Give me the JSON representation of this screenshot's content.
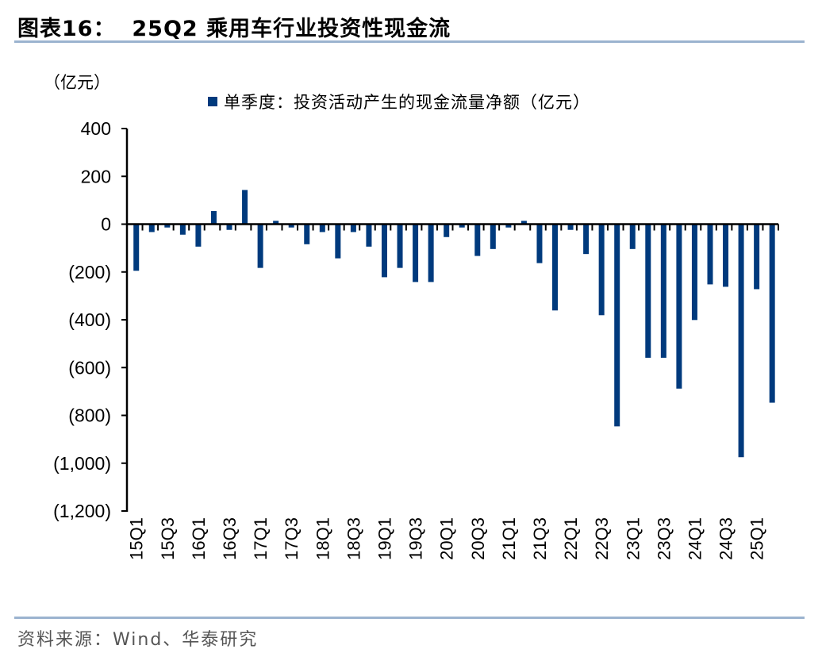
{
  "title": "图表16：  25Q2 乘用车行业投资性现金流",
  "source": "资料来源：Wind、华泰研究",
  "colors": {
    "bar": "#003a7d",
    "rule": "#9bb3cf",
    "axis": "#000000"
  },
  "chart_data": {
    "type": "bar",
    "title": "",
    "ylabel": "（亿元）",
    "xlabel": "",
    "ylim": [
      -1200,
      400
    ],
    "yticks": [
      400,
      200,
      0,
      -200,
      -400,
      -600,
      -800,
      -1000,
      -1200
    ],
    "ytick_labels": [
      "400",
      "200",
      "0",
      "(200)",
      "(400)",
      "(600)",
      "(800)",
      "(1,000)",
      "(1,200)"
    ],
    "grid": false,
    "legend": {
      "placement": "top-center",
      "entries": [
        "单季度：投资活动产生的现金流量净额（亿元）"
      ]
    },
    "categories": [
      "15Q1",
      "15Q2",
      "15Q3",
      "15Q4",
      "16Q1",
      "16Q2",
      "16Q3",
      "16Q4",
      "17Q1",
      "17Q2",
      "17Q3",
      "17Q4",
      "18Q1",
      "18Q2",
      "18Q3",
      "18Q4",
      "19Q1",
      "19Q2",
      "19Q3",
      "19Q4",
      "20Q1",
      "20Q2",
      "20Q3",
      "20Q4",
      "21Q1",
      "21Q2",
      "21Q3",
      "21Q4",
      "22Q1",
      "22Q2",
      "22Q3",
      "22Q4",
      "23Q1",
      "23Q2",
      "23Q3",
      "23Q4",
      "24Q1",
      "24Q2",
      "24Q3",
      "24Q4",
      "25Q1",
      "25Q2"
    ],
    "xtick_labels": [
      "15Q1",
      "15Q3",
      "16Q1",
      "16Q3",
      "17Q1",
      "17Q3",
      "18Q1",
      "18Q3",
      "19Q1",
      "19Q3",
      "20Q1",
      "20Q3",
      "21Q1",
      "21Q3",
      "22Q1",
      "22Q3",
      "23Q1",
      "23Q3",
      "24Q1",
      "24Q3",
      "25Q1"
    ],
    "series": [
      {
        "name": "单季度：投资活动产生的现金流量净额（亿元）",
        "values": [
          -195,
          -33,
          -14,
          -44,
          -94,
          55,
          -24,
          143,
          -183,
          14,
          -14,
          -84,
          -33,
          -143,
          -33,
          -94,
          -222,
          -183,
          -242,
          -242,
          -54,
          -14,
          -133,
          -104,
          -14,
          14,
          -163,
          -361,
          -24,
          -125,
          -381,
          -846,
          -104,
          -559,
          -559,
          -688,
          -401,
          -252,
          -262,
          -975,
          -272,
          -747
        ]
      }
    ]
  }
}
